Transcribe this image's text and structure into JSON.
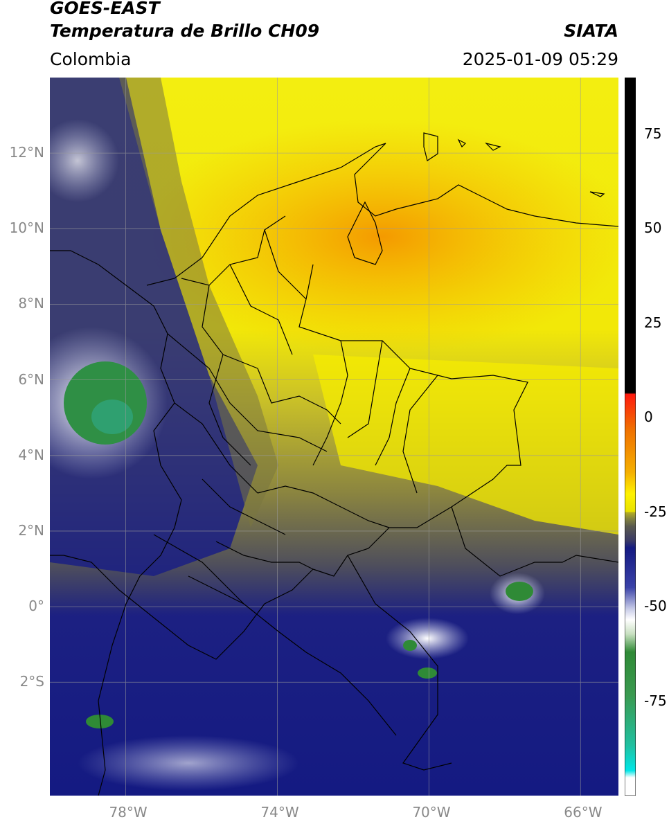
{
  "header": {
    "satellite": "GOES-EAST",
    "product": "Temperatura de Brillo CH09",
    "brand": "SIATA",
    "region": "Colombia",
    "datetime": "2025-01-09 05:29"
  },
  "map": {
    "lon_range": [
      -80,
      -65
    ],
    "lat_range": [
      -5,
      14
    ],
    "lat_ticks": [
      "12°N",
      "10°N",
      "8°N",
      "6°N",
      "4°N",
      "2°N",
      "0°",
      "2°S"
    ],
    "lon_ticks": [
      "78°W",
      "74°W",
      "70°W",
      "66°W"
    ],
    "grid": true
  },
  "colorbar": {
    "range": [
      -100,
      90
    ],
    "ticks": [
      "75",
      "50",
      "25",
      "0",
      "-25",
      "-50",
      "-75"
    ],
    "colors": {
      "black": "#000000",
      "red": "#e8201a",
      "orange": "#f5a000",
      "yellow": "#fff200",
      "olive": "#808040",
      "gray": "#4a4a58",
      "navy": "#141a82",
      "white": "#ffffff",
      "green": "#2f8a36",
      "cyan": "#00e6e6"
    }
  }
}
